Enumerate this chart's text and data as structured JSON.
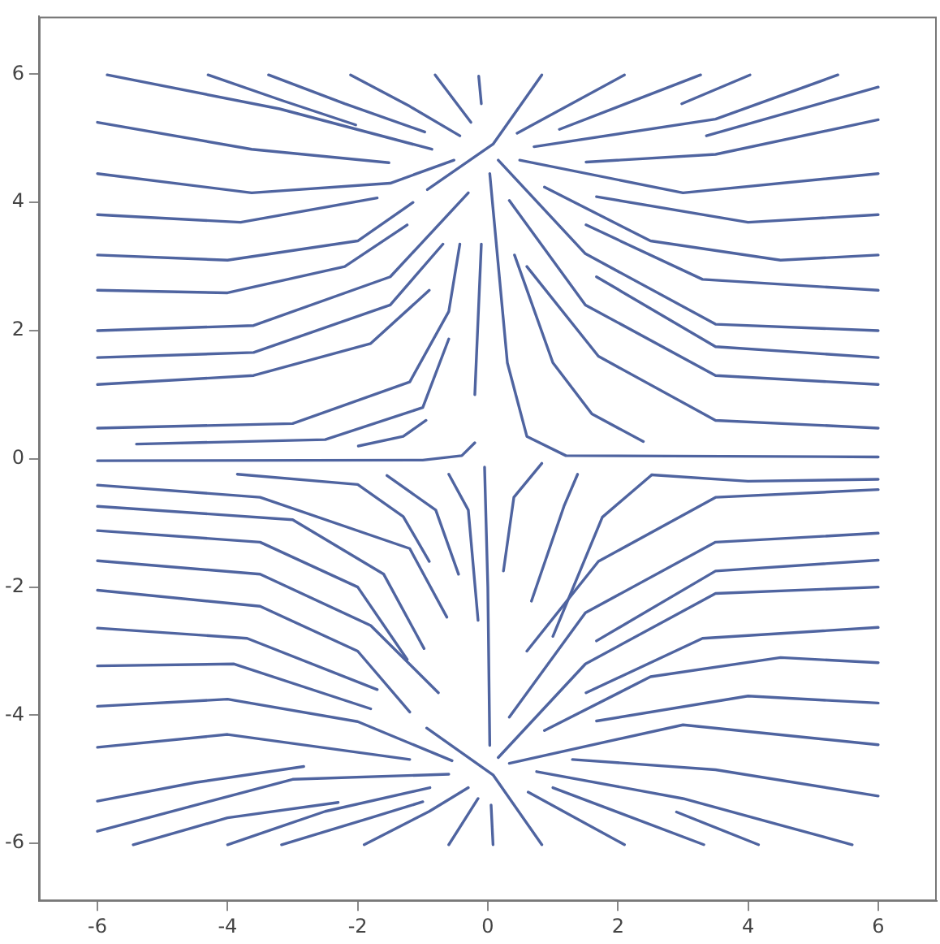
{
  "chart_data": {
    "type": "line",
    "xlim": [
      -6.9,
      6.9
    ],
    "ylim": [
      -6.9,
      6.9
    ],
    "xticks": [
      -6,
      -4,
      -2,
      0,
      2,
      4,
      6
    ],
    "yticks": [
      -6,
      -4,
      -2,
      0,
      2,
      4,
      6
    ],
    "grid": false,
    "legend": false,
    "marker": "none",
    "line_style": "solid",
    "series": [
      {
        "color": "#4f64a0",
        "x": [
          -5.85,
          -3.2,
          -0.86
        ],
        "values": [
          5.99,
          5.46,
          4.83
        ]
      },
      {
        "color": "#4f64a0",
        "x": [
          -6,
          -3.63,
          -1.52
        ],
        "values": [
          5.25,
          4.83,
          4.62
        ]
      },
      {
        "color": "#4f64a0",
        "x": [
          -4.3,
          -3.16,
          -2.03
        ],
        "values": [
          5.99,
          5.59,
          5.21
        ]
      },
      {
        "color": "#4f64a0",
        "x": [
          -3.37,
          -2.2,
          -0.97
        ],
        "values": [
          5.99,
          5.54,
          5.1
        ]
      },
      {
        "color": "#4f64a0",
        "x": [
          -2.11,
          -1.2,
          -0.43
        ],
        "values": [
          5.99,
          5.5,
          5.04
        ]
      },
      {
        "color": "#4f64a0",
        "x": [
          -0.81,
          -0.26
        ],
        "values": [
          5.99,
          5.25
        ]
      },
      {
        "color": "#4f64a0",
        "x": [
          -0.14,
          -0.1
        ],
        "values": [
          5.97,
          5.54
        ]
      },
      {
        "color": "#4f64a0",
        "x": [
          -6,
          -3.63,
          -1.5,
          -0.52
        ],
        "values": [
          4.45,
          4.15,
          4.3,
          4.66
        ]
      },
      {
        "color": "#4f64a0",
        "x": [
          -0.93,
          0.08,
          0.83
        ],
        "values": [
          4.2,
          4.91,
          5.99
        ]
      },
      {
        "color": "#4f64a0",
        "x": [
          -6,
          -3.8,
          -1.7
        ],
        "values": [
          3.81,
          3.69,
          4.07
        ]
      },
      {
        "color": "#4f64a0",
        "x": [
          -6,
          -4,
          -2,
          -1.15
        ],
        "values": [
          3.18,
          3.1,
          3.4,
          4.0
        ]
      },
      {
        "color": "#4f64a0",
        "x": [
          -6,
          -4,
          -2.2,
          -1.24
        ],
        "values": [
          2.63,
          2.59,
          3.0,
          3.65
        ]
      },
      {
        "color": "#4f64a0",
        "x": [
          -6,
          -3.6,
          -1.5,
          -0.3
        ],
        "values": [
          2.0,
          2.08,
          2.84,
          4.15
        ]
      },
      {
        "color": "#4f64a0",
        "x": [
          -6,
          -3.6,
          -1.5,
          -0.69
        ],
        "values": [
          1.58,
          1.66,
          2.4,
          3.35
        ]
      },
      {
        "color": "#4f64a0",
        "x": [
          -6,
          -3.6,
          -1.8,
          -0.9
        ],
        "values": [
          1.16,
          1.3,
          1.8,
          2.63
        ]
      },
      {
        "color": "#4f64a0",
        "x": [
          -6,
          -3,
          -1.2,
          -0.6,
          -0.43
        ],
        "values": [
          0.48,
          0.55,
          1.2,
          2.3,
          3.35
        ]
      },
      {
        "color": "#4f64a0",
        "x": [
          -5.4,
          -2.5,
          -1,
          -0.6
        ],
        "values": [
          0.23,
          0.3,
          0.8,
          1.87
        ]
      },
      {
        "color": "#4f64a0",
        "x": [
          -1.99,
          -1.3,
          -0.95
        ],
        "values": [
          0.2,
          0.35,
          0.6
        ]
      },
      {
        "color": "#4f64a0",
        "x": [
          -6,
          -1,
          -0.4,
          -0.2
        ],
        "values": [
          -0.03,
          -0.02,
          0.05,
          0.25
        ]
      },
      {
        "color": "#4f64a0",
        "x": [
          -0.1,
          -0.2
        ],
        "values": [
          3.35,
          1.0
        ]
      },
      {
        "color": "#4f64a0",
        "x": [
          0.45,
          2.1
        ],
        "values": [
          5.08,
          5.99
        ]
      },
      {
        "color": "#4f64a0",
        "x": [
          1.1,
          3.27
        ],
        "values": [
          5.14,
          5.99
        ]
      },
      {
        "color": "#4f64a0",
        "x": [
          2.98,
          4.03
        ],
        "values": [
          5.54,
          5.99
        ]
      },
      {
        "color": "#4f64a0",
        "x": [
          0.71,
          3.5,
          5.38
        ],
        "values": [
          4.87,
          5.3,
          5.99
        ]
      },
      {
        "color": "#4f64a0",
        "x": [
          3.36,
          6
        ],
        "values": [
          5.04,
          5.8
        ]
      },
      {
        "color": "#4f64a0",
        "x": [
          1.51,
          3.5,
          6
        ],
        "values": [
          4.63,
          4.75,
          5.29
        ]
      },
      {
        "color": "#4f64a0",
        "x": [
          0.49,
          3,
          6
        ],
        "values": [
          4.66,
          4.15,
          4.45
        ]
      },
      {
        "color": "#4f64a0",
        "x": [
          1.67,
          4,
          6
        ],
        "values": [
          4.09,
          3.69,
          3.81
        ]
      },
      {
        "color": "#4f64a0",
        "x": [
          0.87,
          2.5,
          4.5,
          6
        ],
        "values": [
          4.24,
          3.4,
          3.1,
          3.18
        ]
      },
      {
        "color": "#4f64a0",
        "x": [
          1.51,
          3.3,
          6
        ],
        "values": [
          3.65,
          2.8,
          2.63
        ]
      },
      {
        "color": "#4f64a0",
        "x": [
          0.16,
          1.5,
          3.5,
          6
        ],
        "values": [
          4.66,
          3.2,
          2.1,
          2.0
        ]
      },
      {
        "color": "#4f64a0",
        "x": [
          1.67,
          3.5,
          6
        ],
        "values": [
          2.84,
          1.75,
          1.58
        ]
      },
      {
        "color": "#4f64a0",
        "x": [
          0.33,
          1.5,
          3.5,
          6
        ],
        "values": [
          4.03,
          2.4,
          1.3,
          1.16
        ]
      },
      {
        "color": "#4f64a0",
        "x": [
          0.6,
          1.7,
          3.5,
          6
        ],
        "values": [
          3.0,
          1.6,
          0.6,
          0.48
        ]
      },
      {
        "color": "#4f64a0",
        "x": [
          0.41,
          1,
          1.6,
          2.39
        ],
        "values": [
          3.18,
          1.5,
          0.7,
          0.27
        ]
      },
      {
        "color": "#4f64a0",
        "x": [
          0.03,
          0.3,
          0.6,
          1.2,
          6
        ],
        "values": [
          4.45,
          1.5,
          0.35,
          0.05,
          0.03
        ]
      },
      {
        "color": "#4f64a0",
        "x": [
          -6,
          -3.5,
          -1.2,
          -0.63
        ],
        "values": [
          -0.41,
          -0.6,
          -1.4,
          -2.47
        ]
      },
      {
        "color": "#4f64a0",
        "x": [
          -6,
          -3,
          -1.6,
          -0.98
        ],
        "values": [
          -0.74,
          -0.95,
          -1.8,
          -2.96
        ]
      },
      {
        "color": "#4f64a0",
        "x": [
          -6,
          -3.5,
          -2,
          -1.24
        ],
        "values": [
          -1.12,
          -1.3,
          -2,
          -3.13
        ]
      },
      {
        "color": "#4f64a0",
        "x": [
          -6,
          -3.5,
          -1.8,
          -0.76
        ],
        "values": [
          -1.59,
          -1.8,
          -2.6,
          -3.65
        ]
      },
      {
        "color": "#4f64a0",
        "x": [
          -6,
          -3.5,
          -2,
          -1.2
        ],
        "values": [
          -2.05,
          -2.3,
          -3,
          -3.95
        ]
      },
      {
        "color": "#4f64a0",
        "x": [
          -6,
          -3.7,
          -1.7
        ],
        "values": [
          -2.64,
          -2.8,
          -3.6
        ]
      },
      {
        "color": "#4f64a0",
        "x": [
          -6,
          -3.9,
          -1.8
        ],
        "values": [
          -3.23,
          -3.2,
          -3.9
        ]
      },
      {
        "color": "#4f64a0",
        "x": [
          -6,
          -4,
          -2,
          -0.55
        ],
        "values": [
          -3.86,
          -3.75,
          -4.1,
          -4.71
        ]
      },
      {
        "color": "#4f64a0",
        "x": [
          -6,
          -4,
          -1.2
        ],
        "values": [
          -4.5,
          -4.3,
          -4.69
        ]
      },
      {
        "color": "#4f64a0",
        "x": [
          -6,
          -4.5,
          -2.83
        ],
        "values": [
          -5.34,
          -5.05,
          -4.8
        ]
      },
      {
        "color": "#4f64a0",
        "x": [
          -6,
          -3,
          -0.6
        ],
        "values": [
          -5.81,
          -5.0,
          -4.92
        ]
      },
      {
        "color": "#4f64a0",
        "x": [
          -5.45,
          -4,
          -2.3
        ],
        "values": [
          -6.02,
          -5.6,
          -5.36
        ]
      },
      {
        "color": "#4f64a0",
        "x": [
          -4.0,
          -2.5,
          -0.89
        ],
        "values": [
          -6.02,
          -5.5,
          -5.13
        ]
      },
      {
        "color": "#4f64a0",
        "x": [
          -3.17,
          -1.8,
          -1.0
        ],
        "values": [
          -6.02,
          -5.6,
          -5.35
        ]
      },
      {
        "color": "#4f64a0",
        "x": [
          -1.9,
          -0.9,
          -0.3
        ],
        "values": [
          -6.02,
          -5.5,
          -5.13
        ]
      },
      {
        "color": "#4f64a0",
        "x": [
          -0.6,
          -0.15
        ],
        "values": [
          -6.02,
          -5.3
        ]
      },
      {
        "color": "#4f64a0",
        "x": [
          0.05,
          0.08
        ],
        "values": [
          -5.4,
          -6.02
        ]
      },
      {
        "color": "#4f64a0",
        "x": [
          -0.94,
          0.08,
          0.83
        ],
        "values": [
          -4.2,
          -4.93,
          -6.02
        ]
      },
      {
        "color": "#4f64a0",
        "x": [
          -0.05,
          0,
          0.03
        ],
        "values": [
          -0.13,
          -2,
          -4.47
        ]
      },
      {
        "color": "#4f64a0",
        "x": [
          -3.85,
          -2,
          -1.3,
          -0.9
        ],
        "values": [
          -0.24,
          -0.4,
          -0.9,
          -1.6
        ]
      },
      {
        "color": "#4f64a0",
        "x": [
          -1.55,
          -0.8,
          -0.45
        ],
        "values": [
          -0.26,
          -0.8,
          -1.8
        ]
      },
      {
        "color": "#4f64a0",
        "x": [
          -0.6,
          -0.3,
          -0.15
        ],
        "values": [
          -0.24,
          -0.8,
          -2.52
        ]
      },
      {
        "color": "#4f64a0",
        "x": [
          0.62,
          2.1
        ],
        "values": [
          -5.2,
          -6.02
        ]
      },
      {
        "color": "#4f64a0",
        "x": [
          1.0,
          3.32
        ],
        "values": [
          -5.13,
          -6.02
        ]
      },
      {
        "color": "#4f64a0",
        "x": [
          2.9,
          4.16
        ],
        "values": [
          -5.51,
          -6.02
        ]
      },
      {
        "color": "#4f64a0",
        "x": [
          0.75,
          3,
          5.6
        ],
        "values": [
          -4.88,
          -5.3,
          -6.02
        ]
      },
      {
        "color": "#4f64a0",
        "x": [
          1.3,
          3.5,
          6
        ],
        "values": [
          -4.69,
          -4.85,
          -5.26
        ]
      },
      {
        "color": "#4f64a0",
        "x": [
          0.33,
          3,
          6
        ],
        "values": [
          -4.75,
          -4.15,
          -4.46
        ]
      },
      {
        "color": "#4f64a0",
        "x": [
          1.67,
          4,
          6
        ],
        "values": [
          -4.09,
          -3.7,
          -3.81
        ]
      },
      {
        "color": "#4f64a0",
        "x": [
          0.87,
          2.5,
          4.5,
          6
        ],
        "values": [
          -4.24,
          -3.4,
          -3.1,
          -3.18
        ]
      },
      {
        "color": "#4f64a0",
        "x": [
          1.51,
          3.3,
          6
        ],
        "values": [
          -3.65,
          -2.8,
          -2.63
        ]
      },
      {
        "color": "#4f64a0",
        "x": [
          0.16,
          1.5,
          3.5,
          6
        ],
        "values": [
          -4.66,
          -3.2,
          -2.1,
          -2.0
        ]
      },
      {
        "color": "#4f64a0",
        "x": [
          1.67,
          3.5,
          6
        ],
        "values": [
          -2.84,
          -1.75,
          -1.58
        ]
      },
      {
        "color": "#4f64a0",
        "x": [
          0.33,
          1.5,
          3.5,
          6
        ],
        "values": [
          -4.03,
          -2.4,
          -1.3,
          -1.16
        ]
      },
      {
        "color": "#4f64a0",
        "x": [
          0.6,
          1.7,
          3.5,
          6
        ],
        "values": [
          -3.0,
          -1.6,
          -0.6,
          -0.48
        ]
      },
      {
        "color": "#4f64a0",
        "x": [
          1.0,
          1.76,
          2.52
        ],
        "values": [
          -2.77,
          -0.91,
          -0.25
        ]
      },
      {
        "color": "#4f64a0",
        "x": [
          0.67,
          1.17,
          1.38
        ],
        "values": [
          -2.22,
          -0.74,
          -0.24
        ]
      },
      {
        "color": "#4f64a0",
        "x": [
          0.24,
          0.4,
          0.83
        ],
        "values": [
          -1.75,
          -0.6,
          -0.07
        ]
      },
      {
        "color": "#4f64a0",
        "x": [
          2.52,
          4,
          6
        ],
        "values": [
          -0.25,
          -0.35,
          -0.32
        ]
      }
    ]
  }
}
